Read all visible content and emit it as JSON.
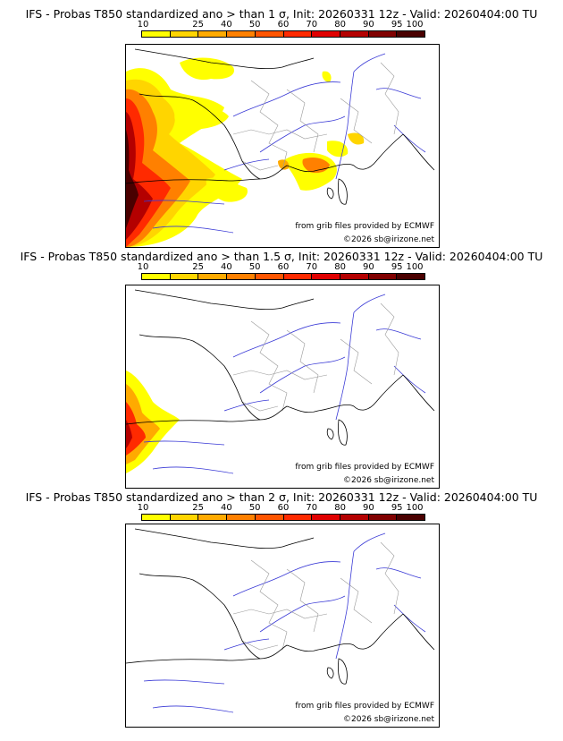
{
  "colors": {
    "scale": [
      "#ffff00",
      "#ffd500",
      "#ffaa00",
      "#ff8000",
      "#ff5500",
      "#ff2a00",
      "#e00000",
      "#b40000",
      "#800000",
      "#4a0000"
    ],
    "coast": "#000000",
    "rivers": "#3a3ad6",
    "borders": "#9a9a9a"
  },
  "legend": {
    "ticks": [
      "10",
      "25",
      "40",
      "50",
      "60",
      "70",
      "80",
      "90",
      "95",
      "100"
    ]
  },
  "panels": [
    {
      "title": "IFS - Probas T850  standardized ano > than 1 σ, Init: 20260331 12z - Valid: 20260404:00 TU",
      "source_note": "from grib files provided by ECMWF",
      "copyright": "©2026 sb@irizone.net"
    },
    {
      "title": "IFS - Probas T850  standardized ano > than 1.5 σ, Init: 20260331 12z - Valid: 20260404:00 TU",
      "source_note": "from grib files provided by ECMWF",
      "copyright": "©2026 sb@irizone.net"
    },
    {
      "title": "IFS - Probas T850  standardized ano > than 2 σ, Init: 20260331 12z - Valid: 20260404:00 TU",
      "source_note": "from grib files provided by ECMWF",
      "copyright": "©2026 sb@irizone.net"
    }
  ]
}
